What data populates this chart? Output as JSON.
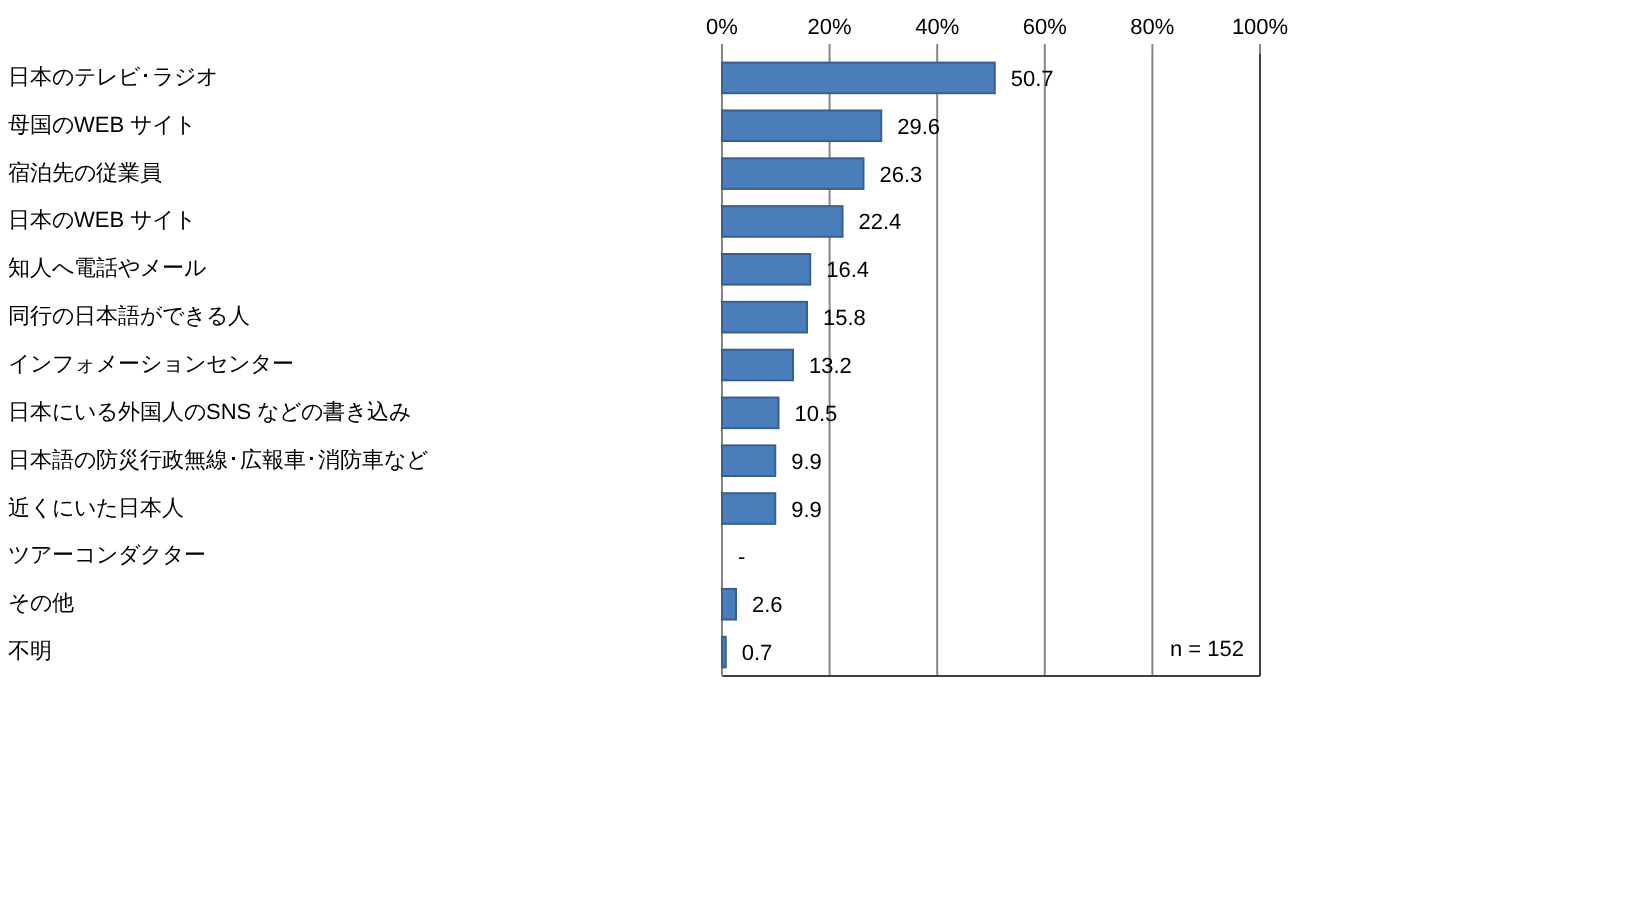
{
  "chart_data": {
    "type": "bar",
    "orientation": "horizontal",
    "categories": [
      "日本のテレビ･ラジオ",
      "母国のWEB サイト",
      "宿泊先の従業員",
      "日本のWEB サイト",
      "知人へ電話やメール",
      "同行の日本語ができる人",
      "インフォメーションセンター",
      "日本にいる外国人のSNS などの書き込み",
      "日本語の防災行政無線･広報車･消防車など",
      "近くにいた日本人",
      "ツアーコンダクター",
      "その他",
      "不明"
    ],
    "values": [
      50.7,
      29.6,
      26.3,
      22.4,
      16.4,
      15.8,
      13.2,
      10.5,
      9.9,
      9.9,
      null,
      2.6,
      0.7
    ],
    "value_labels": [
      "50.7",
      "29.6",
      "26.3",
      "22.4",
      "16.4",
      "15.8",
      "13.2",
      "10.5",
      "9.9",
      "9.9",
      "-",
      "2.6",
      "0.7"
    ],
    "color": "#4a7ebb",
    "xlim": [
      0,
      100
    ],
    "x2lim": [
      0,
      100
    ],
    "x2ticks": [
      {
        "value": 0,
        "label": "0%"
      },
      {
        "value": 20,
        "label": "20%"
      },
      {
        "value": 40,
        "label": "40%"
      },
      {
        "value": 60,
        "label": "60%"
      },
      {
        "value": 80,
        "label": "80%"
      },
      {
        "value": 100,
        "label": "100%"
      }
    ],
    "grid": "x",
    "annotations": [
      "n = 152"
    ]
  }
}
